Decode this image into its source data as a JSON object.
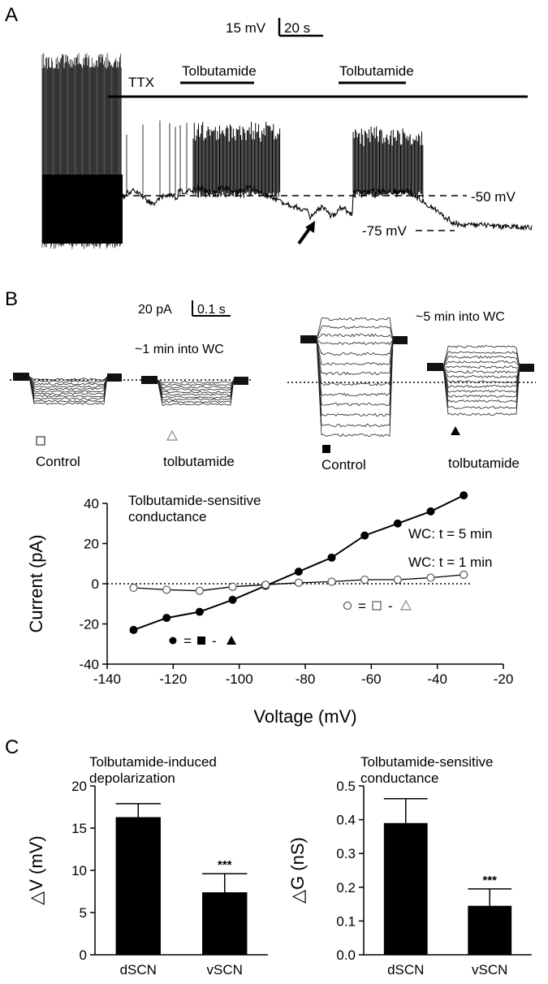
{
  "panel_labels": {
    "a": "A",
    "b": "B",
    "c": "C"
  },
  "panel_a": {
    "scale_voltage": "15 mV",
    "scale_time": "20 s",
    "bar_ttx": "TTX",
    "bar_tolbutamide_1": "Tolbutamide",
    "bar_tolbutamide_2": "Tolbutamide",
    "level_upper": "-50 mV",
    "level_lower": "-75 mV"
  },
  "panel_b_traces": {
    "scale_current": "20 pA",
    "scale_time": "0.1 s",
    "time_1min": "~1 min into WC",
    "time_5min": "~5 min into WC",
    "label_control_1": "Control",
    "label_tolbutamide_1": "tolbutamide",
    "label_control_5": "Control",
    "label_tolbutamide_5": "tolbutamide"
  },
  "colors": {
    "ink": "#000000",
    "open_marker": "#555555",
    "light_marker": "#888888"
  },
  "chart_data": [
    {
      "type": "line",
      "title": "Tolbutamide-sensitive conductance",
      "xlabel": "Voltage (mV)",
      "ylabel": "Current (pA)",
      "xlim": [
        -140,
        -20
      ],
      "ylim": [
        -40,
        40
      ],
      "x_ticks": [
        "-140",
        "-120",
        "-100",
        "-80",
        "-60",
        "-40",
        "-20"
      ],
      "y_ticks": [
        "-40",
        "-20",
        "0",
        "20",
        "40"
      ],
      "series": [
        {
          "name": "WC: t = 5 min",
          "marker": "filled-circle",
          "formula": [
            "=",
            "-"
          ],
          "x": [
            -132,
            -122,
            -112,
            -102,
            -92,
            -82,
            -72,
            -62,
            -52,
            -42,
            -32
          ],
          "y": [
            -23,
            -17,
            -14,
            -8,
            -1,
            6,
            13,
            24,
            30,
            36,
            44
          ]
        },
        {
          "name": "WC: t = 1 min",
          "marker": "open-circle",
          "formula": [
            "=",
            "-"
          ],
          "x": [
            -132,
            -122,
            -112,
            -102,
            -92,
            -82,
            -72,
            -62,
            -52,
            -42,
            -32
          ],
          "y": [
            -2,
            -3,
            -3.5,
            -1.5,
            -0.5,
            0.5,
            1,
            2,
            2,
            3,
            4.5
          ]
        }
      ]
    },
    {
      "type": "bar",
      "title": "Tolbutamide-induced depolarization",
      "ylabel": "△V (mV)",
      "categories": [
        "dSCN",
        "vSCN"
      ],
      "values": [
        16.3,
        7.4
      ],
      "errors": [
        1.6,
        2.2
      ],
      "significance": [
        "",
        "***"
      ],
      "ylim": [
        0,
        20
      ],
      "y_ticks": [
        "0",
        "5",
        "10",
        "15",
        "20"
      ]
    },
    {
      "type": "bar",
      "title": "Tolbutamide-sensitive conductance",
      "ylabel": "△G (nS)",
      "categories": [
        "dSCN",
        "vSCN"
      ],
      "values": [
        0.39,
        0.145
      ],
      "errors": [
        0.072,
        0.05
      ],
      "significance": [
        "",
        "***"
      ],
      "ylim": [
        0,
        0.5
      ],
      "y_ticks": [
        "0.0",
        "0.1",
        "0.2",
        "0.3",
        "0.4",
        "0.5"
      ]
    }
  ]
}
